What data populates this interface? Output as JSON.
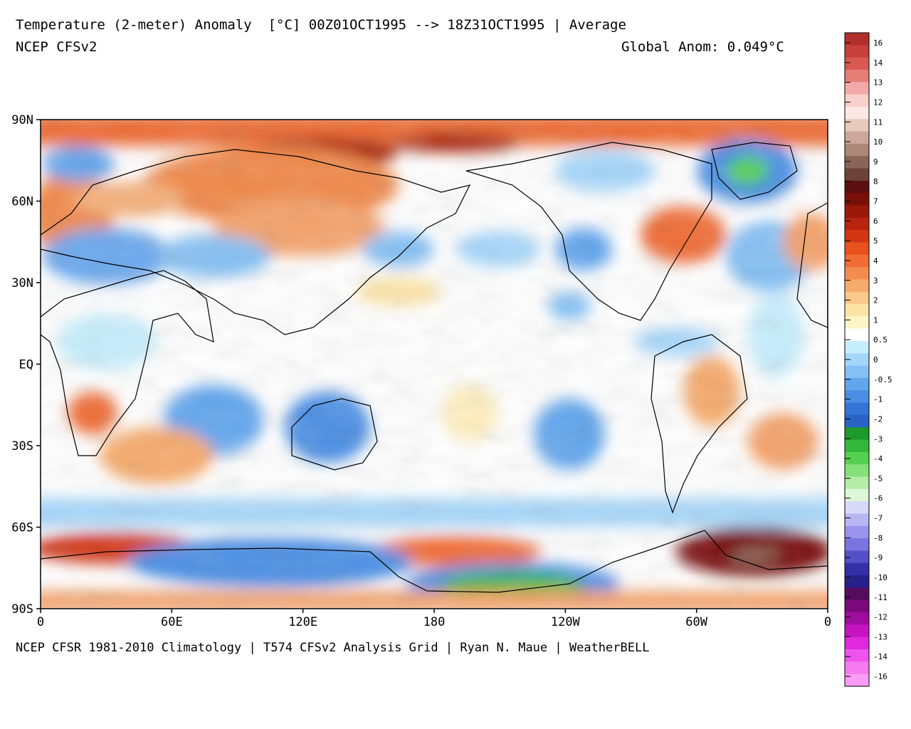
{
  "header": {
    "title": "Temperature (2-meter) Anomaly  [°C] 00Z01OCT1995 --> 18Z31OCT1995 | Average",
    "model": "NCEP CFSv2",
    "global_anom": "Global Anom: 0.049°C"
  },
  "footer": {
    "credits": "NCEP CFSR 1981-2010 Climatology | T574 CFSv2 Analysis Grid | Ryan N. Maue | WeatherBELL"
  },
  "map": {
    "projection": "equirectangular",
    "lat_labels": [
      "90N",
      "60N",
      "30N",
      "EQ",
      "30S",
      "60S",
      "90S"
    ],
    "lon_labels": [
      "0",
      "60E",
      "120E",
      "180",
      "120W",
      "60W",
      "0"
    ],
    "center_longitude": 180
  },
  "colorbar": {
    "labels": [
      "16",
      "14",
      "13",
      "12",
      "11",
      "10",
      "9",
      "8",
      "7",
      "6",
      "5",
      "4",
      "3",
      "2",
      "1",
      "0.5",
      "0",
      "-0.5",
      "-1",
      "-2",
      "-3",
      "-4",
      "-5",
      "-6",
      "-7",
      "-8",
      "-9",
      "-10",
      "-11",
      "-12",
      "-13",
      "-14",
      "-16"
    ],
    "colors": [
      "#b2302c",
      "#c8403c",
      "#d95850",
      "#e67e78",
      "#f2aaa8",
      "#fad0cc",
      "#fbe8e2",
      "#e6c8bc",
      "#cda89a",
      "#ac8676",
      "#8a6454",
      "#6a4236",
      "#5a1010",
      "#7a1008",
      "#9a1808",
      "#b82410",
      "#d23612",
      "#e8501c",
      "#f06c34",
      "#f48c50",
      "#f6aa6c",
      "#fac88a",
      "#fde4a6",
      "#fff6c8",
      "#ffffff",
      "#c6eefc",
      "#a4d6fa",
      "#84c0f4",
      "#62a6ee",
      "#4a8ee4",
      "#3474d6",
      "#2a62c6",
      "#1c9a2a",
      "#34b63c",
      "#56d050",
      "#86e07a",
      "#b4eca8",
      "#dcf6d8",
      "#d8d8fa",
      "#b8b6f2",
      "#9a94ec",
      "#7a74e2",
      "#5450c8",
      "#3430a6",
      "#26208a",
      "#560c5c",
      "#7a0a7a",
      "#a00ca0",
      "#c614c2",
      "#e028de",
      "#ee54ec",
      "#f47cf0",
      "#f89cf4"
    ]
  }
}
